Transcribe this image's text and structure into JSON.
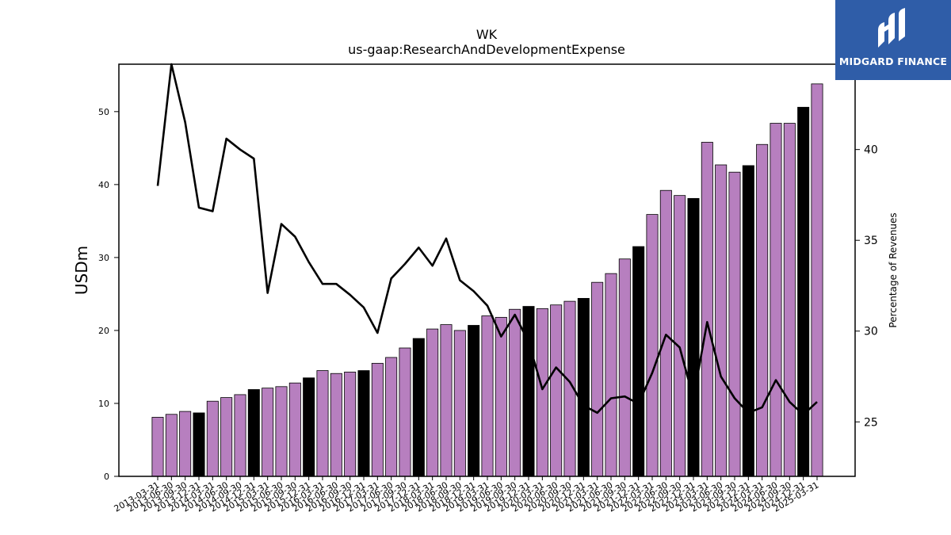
{
  "brand": {
    "name": "MIDGARD FINANCE",
    "icon": "midgard-logo-icon",
    "color": "#2f5da8"
  },
  "chart_data": {
    "type": "bar+line",
    "title": "WK",
    "subtitle": "us-gaap:ResearchAndDevelopmentExpense",
    "ylabel": "USDm",
    "y2label": "Percentage of Revenues",
    "ylim": [
      0,
      56.5
    ],
    "y2lim": [
      22,
      44.7
    ],
    "yticks": [
      0,
      10,
      20,
      30,
      40,
      50
    ],
    "y2ticks": [
      25,
      30,
      35,
      40
    ],
    "grid": false,
    "colors": {
      "bar": "#b77fbf",
      "bar_q4": "#000000",
      "line": "#000000"
    },
    "categories": [
      "2013-03-31",
      "2013-06-30",
      "2013-09-30",
      "2013-12-31",
      "2014-03-31",
      "2014-06-30",
      "2014-09-30",
      "2014-12-31",
      "2015-03-31",
      "2015-06-30",
      "2015-09-30",
      "2015-12-31",
      "2016-03-31",
      "2016-06-30",
      "2016-09-30",
      "2016-12-31",
      "2017-03-31",
      "2017-06-30",
      "2017-09-30",
      "2017-12-31",
      "2018-03-31",
      "2018-06-30",
      "2018-09-30",
      "2018-12-31",
      "2019-03-31",
      "2019-06-30",
      "2019-09-30",
      "2019-12-31",
      "2020-03-31",
      "2020-06-30",
      "2020-09-30",
      "2020-12-31",
      "2021-03-31",
      "2021-06-30",
      "2021-09-30",
      "2021-12-31",
      "2022-03-31",
      "2022-06-30",
      "2022-09-30",
      "2022-12-31",
      "2023-03-31",
      "2023-06-30",
      "2023-09-30",
      "2023-12-31",
      "2024-03-31",
      "2024-06-30",
      "2024-09-30",
      "2024-12-31",
      "2025-03-31"
    ],
    "series": [
      {
        "kind": "bar",
        "values": [
          8.1,
          8.5,
          8.9,
          8.7,
          10.3,
          10.8,
          11.2,
          11.9,
          12.1,
          12.3,
          12.8,
          13.5,
          14.5,
          14.1,
          14.3,
          14.5,
          15.5,
          16.3,
          17.6,
          18.9,
          20.2,
          20.8,
          20.0,
          20.7,
          22.0,
          21.8,
          22.9,
          23.3,
          23.0,
          23.5,
          24.0,
          24.4,
          26.6,
          27.8,
          29.8,
          31.5,
          35.9,
          39.2,
          38.5,
          38.1,
          45.8,
          42.7,
          41.7,
          42.6,
          45.5,
          48.4,
          48.4,
          50.6,
          53.8
        ]
      },
      {
        "kind": "line",
        "axis": "right",
        "values": [
          38.0,
          44.7,
          41.5,
          36.8,
          36.6,
          40.6,
          40.0,
          39.5,
          32.1,
          35.9,
          35.2,
          33.8,
          32.6,
          32.6,
          32.0,
          31.3,
          29.9,
          32.9,
          33.7,
          34.6,
          33.6,
          35.1,
          32.8,
          32.2,
          31.4,
          29.7,
          30.9,
          29.4,
          26.8,
          28.0,
          27.2,
          25.9,
          25.5,
          26.3,
          26.4,
          26.0,
          27.7,
          29.8,
          29.1,
          26.3,
          30.5,
          27.5,
          26.3,
          25.5,
          25.8,
          27.3,
          26.1,
          25.4,
          26.1
        ]
      }
    ]
  }
}
